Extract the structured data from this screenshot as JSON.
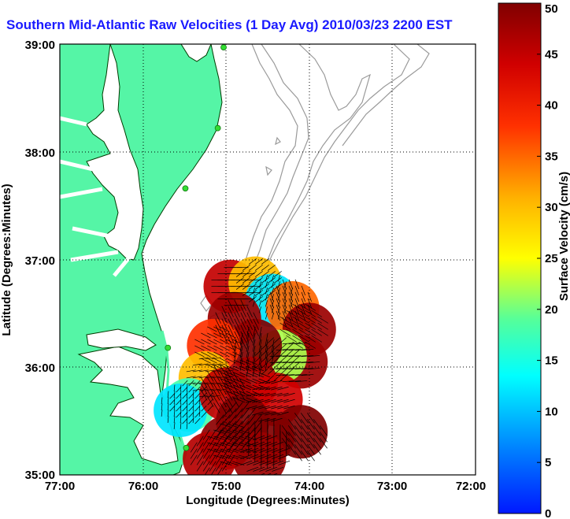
{
  "chart_data": {
    "type": "heatmap",
    "title": "Southern Mid-Atlantic Raw Velocities (1 Day Avg) 2010/03/23 2200 EST",
    "xlabel": "Longitude (Degrees:Minutes)",
    "ylabel": "Latitude (Degrees:Minutes)",
    "x_ticks": [
      "77:00",
      "76:00",
      "75:00",
      "74:00",
      "73:00",
      "72:00"
    ],
    "y_ticks": [
      "39:00",
      "38:00",
      "37:00",
      "36:00",
      "35:00"
    ],
    "xlim": [
      -77,
      -72
    ],
    "ylim": [
      35,
      39
    ],
    "grid": true,
    "colorbar": {
      "label": "Surface Velocity (cm/s)",
      "min": 0,
      "max": 50,
      "ticks": [
        "0",
        "5",
        "10",
        "15",
        "20",
        "25",
        "30",
        "35",
        "40",
        "45",
        "50"
      ],
      "colormap": "jet"
    },
    "stations": [
      {
        "lon": -75.03,
        "lat": 38.97
      },
      {
        "lon": -75.1,
        "lat": 38.22
      },
      {
        "lon": -75.49,
        "lat": 37.66
      },
      {
        "lon": -75.7,
        "lat": 36.18
      },
      {
        "lon": -75.48,
        "lat": 35.25
      }
    ],
    "velocity_field": [
      {
        "lon": -74.95,
        "lat": 36.75,
        "speed": 45
      },
      {
        "lon": -74.65,
        "lat": 36.78,
        "speed": 30
      },
      {
        "lon": -74.45,
        "lat": 36.62,
        "speed": 12
      },
      {
        "lon": -74.2,
        "lat": 36.55,
        "speed": 35
      },
      {
        "lon": -74.0,
        "lat": 36.35,
        "speed": 48
      },
      {
        "lon": -74.1,
        "lat": 36.05,
        "speed": 48
      },
      {
        "lon": -74.35,
        "lat": 36.1,
        "speed": 22
      },
      {
        "lon": -74.65,
        "lat": 36.2,
        "speed": 50
      },
      {
        "lon": -74.9,
        "lat": 36.45,
        "speed": 48
      },
      {
        "lon": -75.15,
        "lat": 36.2,
        "speed": 38
      },
      {
        "lon": -75.25,
        "lat": 35.9,
        "speed": 30
      },
      {
        "lon": -75.45,
        "lat": 35.65,
        "speed": 18
      },
      {
        "lon": -75.55,
        "lat": 35.6,
        "speed": 12
      },
      {
        "lon": -75.0,
        "lat": 35.75,
        "speed": 45
      },
      {
        "lon": -74.7,
        "lat": 35.85,
        "speed": 47
      },
      {
        "lon": -74.4,
        "lat": 35.7,
        "speed": 44
      },
      {
        "lon": -74.8,
        "lat": 35.5,
        "speed": 50
      },
      {
        "lon": -74.5,
        "lat": 35.35,
        "speed": 50
      },
      {
        "lon": -74.1,
        "lat": 35.4,
        "speed": 50
      },
      {
        "lon": -75.0,
        "lat": 35.3,
        "speed": 49
      },
      {
        "lon": -74.6,
        "lat": 35.15,
        "speed": 48
      },
      {
        "lon": -75.2,
        "lat": 35.15,
        "speed": 46
      }
    ]
  },
  "colors": {
    "land": "#55f5a6",
    "water": "#ffffff",
    "coastline": "#003b00",
    "bathymetry": "#9a9a9a",
    "station": "#33dd33",
    "title": "#1a1aff"
  }
}
